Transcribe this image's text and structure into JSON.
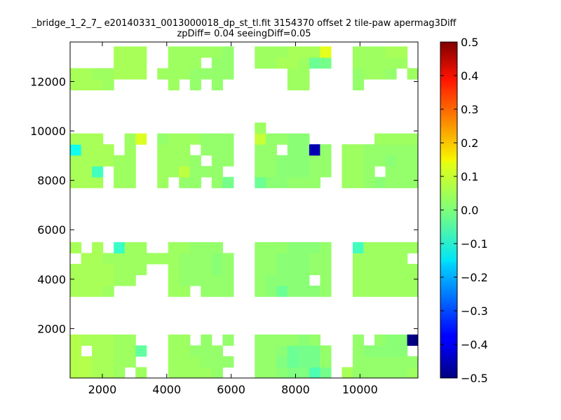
{
  "chart_data": {
    "type": "heatmap",
    "title_lines": [
      "_bridge_1_2_7_ e20140331_0013000018_dp_st_tl.fit 3154370 offset 2 tile-paw apermag3Diff",
      "zpDiff= 0.04 seeingDiff=0.05"
    ],
    "xlabel": "",
    "ylabel": "",
    "xlim": [
      1000,
      11800
    ],
    "ylim": [
      0,
      13600
    ],
    "xticks": [
      2000,
      4000,
      6000,
      8000,
      10000
    ],
    "yticks": [
      2000,
      4000,
      6000,
      8000,
      10000,
      12000
    ],
    "xtick_labels": [
      "2000",
      "4000",
      "6000",
      "8000",
      "10000"
    ],
    "ytick_labels": [
      "2000",
      "4000",
      "6000",
      "8000",
      "10000",
      "12000"
    ],
    "grid": false,
    "cell_size_x": 338,
    "cell_size_y": 440,
    "background_color": "#ffffff",
    "colorbar": {
      "colormap": "jet",
      "vmin": -0.5,
      "vmax": 0.5,
      "ticks": [
        0.5,
        0.4,
        0.3,
        0.2,
        0.1,
        0.0,
        -0.1,
        -0.2,
        -0.3,
        -0.4,
        -0.5
      ],
      "tick_labels": [
        "0.5",
        "0.4",
        "0.3",
        "0.2",
        "0.1",
        "0.0",
        "−0.1",
        "−0.2",
        "−0.3",
        "−0.4",
        "−0.5"
      ]
    },
    "default_value": 0.02,
    "row_values": [
      {
        "y": 220,
        "x": [
          1170,
          1508,
          1846,
          2184,
          2522,
          3198,
          4212,
          4550,
          4888,
          5226,
          5564,
          6902,
          7240,
          7578,
          7916,
          8254,
          8592,
          8930,
          9606,
          9944,
          10282,
          10620,
          10958,
          11296,
          11634
        ],
        "v": [
          0.05,
          0.05,
          0.04,
          0.04,
          0.03,
          0.03,
          0.03,
          0.03,
          0.03,
          0.03,
          0.02,
          0.02,
          0.02,
          0.01,
          0,
          0,
          -0.05,
          -0.01,
          0.04,
          0.02,
          0.02,
          0.02,
          0.02,
          0.02,
          0.03
        ]
      },
      {
        "y": 660,
        "x": [
          1170,
          1508,
          1846,
          2184,
          2522,
          2860,
          4212,
          4550,
          4888,
          5226,
          5564,
          5902,
          6902,
          7240,
          7578,
          7916,
          8254,
          8592,
          8930,
          9944,
          10282,
          10620,
          10958,
          11296,
          11634
        ],
        "v": [
          0.05,
          0.05,
          0.04,
          0.04,
          0.03,
          0.03,
          0.03,
          0.03,
          0.03,
          0.02,
          0.02,
          0.02,
          0.02,
          0.02,
          0,
          -0.02,
          -0.01,
          -0.01,
          0.02,
          0.02,
          0.02,
          0.02,
          0.02,
          0.02,
          0.02
        ]
      },
      {
        "y": 1100,
        "x": [
          1170,
          1846,
          2184,
          2522,
          2860,
          3198,
          4212,
          4550,
          4888,
          5226,
          5564,
          6902,
          7240,
          7578,
          7916,
          8254,
          8592,
          8930,
          9944,
          10282,
          10620,
          10958,
          11296
        ],
        "v": [
          0.05,
          0.04,
          0.04,
          0.03,
          0.03,
          -0.03,
          0.03,
          0.03,
          0.02,
          0.02,
          0.02,
          0.02,
          0.02,
          0.01,
          -0.02,
          -0.01,
          -0.01,
          0.02,
          0.02,
          0.01,
          0.01,
          0.01,
          0.01
        ]
      },
      {
        "y": 1540,
        "x": [
          1170,
          1508,
          1846,
          2184,
          2522,
          2860,
          4212,
          4550,
          5226,
          5902,
          6902,
          7240,
          7578,
          7916,
          8254,
          8592,
          9944,
          10620,
          10958,
          11296,
          11634
        ],
        "v": [
          0.05,
          0.04,
          0.04,
          0.04,
          0.03,
          0.03,
          0.03,
          0.03,
          0.02,
          0.02,
          0.02,
          0.02,
          0.02,
          0.02,
          0.01,
          0.02,
          0.02,
          0.02,
          0.01,
          0.01,
          -0.5
        ]
      },
      {
        "y": 3520,
        "x": [
          1170,
          1508,
          1846,
          2184,
          4212,
          4550,
          5226,
          5564,
          5902,
          6902,
          7240,
          7578,
          7916,
          8254,
          8592,
          8930,
          9944,
          10282,
          10620,
          10958,
          11296,
          11634
        ],
        "v": [
          0.04,
          0.04,
          0.04,
          0.03,
          0.03,
          0.03,
          0.02,
          0.02,
          0.02,
          0.02,
          0.01,
          -0.02,
          0.01,
          0.01,
          0.01,
          0.02,
          0.03,
          0.03,
          0.03,
          0.03,
          0.03,
          0.03
        ]
      },
      {
        "y": 3960,
        "x": [
          1170,
          1508,
          1846,
          2184,
          2522,
          2860,
          4212,
          4550,
          4888,
          5226,
          5564,
          5902,
          6902,
          7240,
          7578,
          7916,
          8254,
          8930,
          9944,
          10282,
          10620,
          10958,
          11296,
          11634
        ],
        "v": [
          0.04,
          0.04,
          0.04,
          0.04,
          0.03,
          0.03,
          0.03,
          0.02,
          0.02,
          0.02,
          0.02,
          0.02,
          0.02,
          0.01,
          0.01,
          0.01,
          0.01,
          0.02,
          0.03,
          0.03,
          0.03,
          0.03,
          0.03,
          0.03
        ]
      },
      {
        "y": 4400,
        "x": [
          1170,
          1508,
          1846,
          2184,
          2522,
          2860,
          3198,
          4212,
          4550,
          4888,
          5226,
          5564,
          5902,
          6902,
          7240,
          7578,
          7916,
          8254,
          8592,
          8930,
          9944,
          10282,
          10620,
          10958,
          11296,
          11634
        ],
        "v": [
          0.04,
          0.04,
          0.04,
          0.04,
          0.03,
          0.03,
          0.03,
          0.03,
          0.02,
          0.02,
          0.02,
          0.01,
          0.02,
          0.02,
          0.02,
          0.01,
          0.01,
          0.01,
          0.02,
          0.02,
          0.03,
          0.03,
          0.03,
          0.03,
          0.03,
          0.03
        ]
      },
      {
        "y": 4840,
        "x": [
          1508,
          1846,
          2184,
          2522,
          2860,
          3198,
          3536,
          3874,
          4212,
          4550,
          4888,
          5226,
          5564,
          5902,
          6902,
          7240,
          7578,
          7916,
          8254,
          8592,
          8930,
          9944,
          10282,
          10620,
          10958,
          11296
        ],
        "v": [
          0.04,
          0.04,
          0.03,
          0.03,
          0.03,
          0.03,
          0.03,
          0.03,
          0.03,
          0.02,
          0.02,
          0.02,
          0.01,
          0.02,
          0.02,
          0.02,
          0.01,
          0.01,
          0.01,
          0.02,
          0.02,
          0.03,
          0.03,
          0.03,
          0.03,
          0.03
        ]
      },
      {
        "y": 5280,
        "x": [
          1170,
          1846,
          2522,
          2860,
          3198,
          4212,
          4550,
          4888,
          5226,
          5564,
          6902,
          7240,
          7578,
          7916,
          8254,
          8592,
          8930,
          9944,
          10282,
          10620,
          10958,
          11296,
          11634
        ],
        "v": [
          0.04,
          0.04,
          -0.07,
          0.03,
          0.03,
          0.03,
          0.03,
          0.02,
          0.02,
          0.02,
          0.02,
          0.02,
          0.02,
          0.01,
          0.01,
          0.01,
          0.02,
          -0.06,
          0.03,
          0.03,
          0.03,
          0.03,
          0.03
        ]
      },
      {
        "y": 7920,
        "x": [
          1170,
          1508,
          1846,
          2522,
          2860,
          3874,
          4550,
          4888,
          5564,
          5902,
          6902,
          7240,
          7578,
          7916,
          8254,
          8592,
          9606,
          9944,
          10282,
          10620,
          10958,
          11296,
          11634
        ],
        "v": [
          0.04,
          0.04,
          0.04,
          0.03,
          0.03,
          0.03,
          0.02,
          0.02,
          0.02,
          -0.01,
          -0.02,
          0.01,
          0.01,
          0.02,
          0.02,
          0.02,
          0.03,
          0.03,
          0.02,
          0.01,
          0.02,
          0.02,
          0.02
        ]
      },
      {
        "y": 8360,
        "x": [
          1170,
          1508,
          1846,
          2522,
          2860,
          3874,
          4212,
          4550,
          4888,
          5226,
          5564,
          6902,
          7240,
          7578,
          7916,
          8254,
          8592,
          8930,
          9606,
          9944,
          10282,
          10958,
          11296,
          11634
        ],
        "v": [
          0.04,
          0.04,
          -0.06,
          0.03,
          0.03,
          0.03,
          0.03,
          0.06,
          0.02,
          0.02,
          0.02,
          0.02,
          0.02,
          0.01,
          0.01,
          0.01,
          0.02,
          0.02,
          0.03,
          0.03,
          0.02,
          0.02,
          0.02,
          0.02
        ]
      },
      {
        "y": 8800,
        "x": [
          1170,
          1508,
          1846,
          2184,
          2522,
          2860,
          3874,
          4212,
          4550,
          4888,
          5564,
          5902,
          6902,
          7240,
          7578,
          7916,
          8254,
          8592,
          8930,
          9606,
          9944,
          10282,
          10620,
          10958,
          11296,
          11634
        ],
        "v": [
          0.04,
          0.04,
          0.04,
          0.04,
          0.03,
          0.03,
          0.03,
          0.03,
          0.03,
          0.02,
          0.02,
          0.02,
          0.02,
          0.02,
          0.01,
          0.01,
          0.01,
          0.02,
          0.02,
          0.03,
          0.03,
          0.02,
          0.02,
          0.01,
          0.02,
          0.02
        ]
      },
      {
        "y": 9240,
        "x": [
          1170,
          1508,
          1846,
          2184,
          2860,
          3874,
          4212,
          4550,
          5226,
          5564,
          5902,
          6902,
          7240,
          7916,
          8254,
          8592,
          8930,
          9606,
          9944,
          10282,
          10620,
          10958,
          11296,
          11634
        ],
        "v": [
          -0.11,
          0.04,
          0.04,
          0.04,
          0.03,
          0.03,
          0.03,
          0.03,
          0.02,
          0.02,
          0.02,
          0.02,
          0.02,
          0.01,
          0.01,
          -0.45,
          0.02,
          0.03,
          0.03,
          0.02,
          0.02,
          0.02,
          0.02,
          0.02
        ]
      },
      {
        "y": 9680,
        "x": [
          1170,
          1508,
          1846,
          2860,
          3198,
          3874,
          4212,
          4550,
          4888,
          5226,
          5564,
          5902,
          6902,
          7240,
          7578,
          7916,
          8254,
          10620,
          10958,
          11296,
          11634
        ],
        "v": [
          0.04,
          0.04,
          0.04,
          0.03,
          0.09,
          0.02,
          0.03,
          0.03,
          0.03,
          0.02,
          0.02,
          0.02,
          0.07,
          0.02,
          0.02,
          0.01,
          0.01,
          0.03,
          0.03,
          0.03,
          0.03
        ]
      },
      {
        "y": 10120,
        "x": [
          6902
        ],
        "v": [
          0.03
        ]
      },
      {
        "y": 11880,
        "x": [
          1170,
          1508,
          1846,
          2184,
          4212,
          4888,
          5564,
          7916,
          8254,
          9944
        ],
        "v": [
          0.04,
          0.04,
          0.04,
          0.03,
          0.03,
          0.02,
          0.02,
          0.03,
          0.03,
          0.02
        ]
      },
      {
        "y": 12320,
        "x": [
          1170,
          1508,
          1846,
          2184,
          2522,
          2860,
          3198,
          3874,
          4212,
          4550,
          4888,
          5226,
          5564,
          5902,
          7916,
          8254,
          9944,
          10282,
          10620,
          10958,
          11634
        ],
        "v": [
          0.04,
          0.04,
          0.03,
          0.03,
          0.04,
          0.04,
          0.04,
          0.03,
          0.03,
          0.03,
          0.02,
          0.02,
          0.02,
          0.02,
          0.03,
          0.03,
          0.02,
          0.03,
          0.03,
          0.02,
          0.03
        ]
      },
      {
        "y": 12760,
        "x": [
          2522,
          2860,
          3198,
          4212,
          4550,
          4888,
          5564,
          5902,
          6902,
          7240,
          7578,
          7916,
          8254,
          8592,
          8930,
          9944,
          10282,
          10620,
          10958,
          11296
        ],
        "v": [
          0.04,
          0.04,
          0.04,
          0.03,
          0.03,
          0.03,
          0.02,
          0.02,
          0.03,
          0.03,
          0.04,
          0.04,
          0.03,
          -0.02,
          -0.01,
          0.03,
          0.03,
          0.03,
          0.03,
          0.03
        ]
      },
      {
        "y": 13200,
        "x": [
          2522,
          2860,
          3198,
          4212,
          4550,
          4888,
          5226,
          5564,
          5902,
          6902,
          7240,
          7578,
          7916,
          8254,
          8592,
          8930,
          9944,
          10282,
          10620,
          10958,
          11296
        ],
        "v": [
          0.04,
          0.04,
          0.04,
          0.03,
          0.03,
          0.03,
          0.03,
          0.03,
          0.02,
          0.03,
          0.03,
          0.03,
          0.04,
          0.04,
          0.04,
          0.1,
          0.03,
          0.03,
          0.03,
          0.04,
          0.04
        ]
      }
    ]
  }
}
